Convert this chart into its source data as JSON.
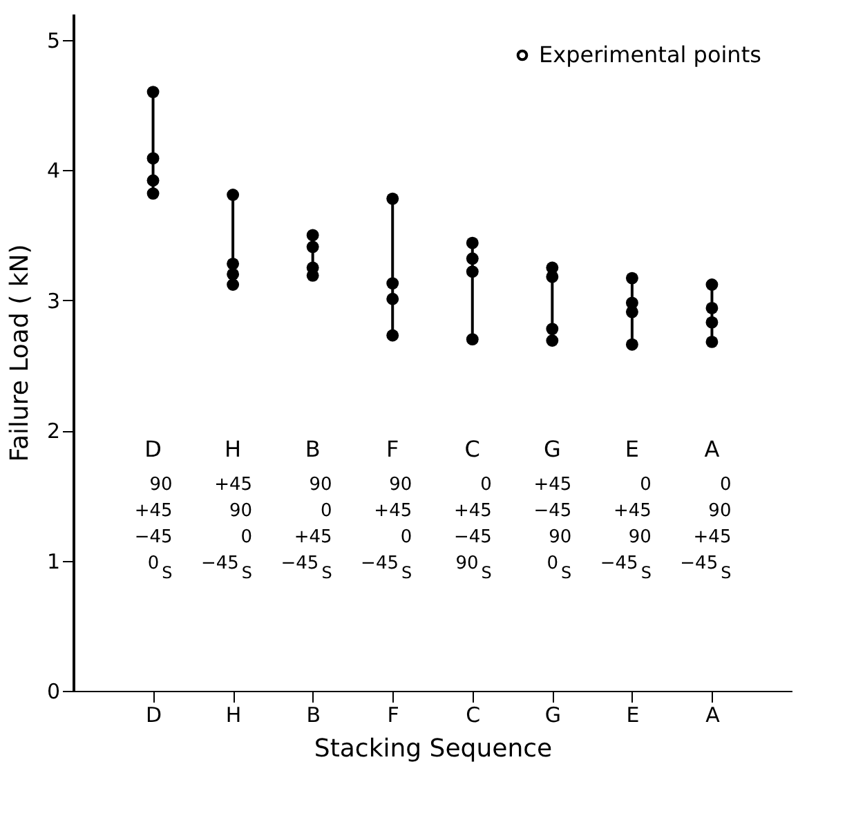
{
  "chart_data": {
    "type": "line",
    "xlabel": "Stacking Sequence",
    "ylabel": "Failure Load ( kN)",
    "categories": [
      "D",
      "H",
      "B",
      "F",
      "C",
      "G",
      "E",
      "A"
    ],
    "ylim": [
      0,
      5.2
    ],
    "yticks": [
      0,
      1,
      2,
      3,
      4,
      5
    ],
    "legend": "top right",
    "marker": "circle",
    "grid": false,
    "series": [
      {
        "name": "Experimental points",
        "color": "#000000",
        "x": [
          "D",
          "D",
          "D",
          "D"
        ],
        "values": [
          4.6,
          4.09,
          3.92,
          3.82
        ]
      },
      {
        "color": "#000000",
        "x": [
          "H",
          "H",
          "H",
          "H"
        ],
        "values": [
          3.81,
          3.28,
          3.2,
          3.12
        ]
      },
      {
        "color": "#000000",
        "x": [
          "B",
          "B",
          "B",
          "B"
        ],
        "values": [
          3.5,
          3.41,
          3.25,
          3.19
        ]
      },
      {
        "color": "#000000",
        "x": [
          "F",
          "F",
          "F",
          "F"
        ],
        "values": [
          3.78,
          3.13,
          3.01,
          2.73
        ]
      },
      {
        "color": "#000000",
        "x": [
          "C",
          "C",
          "C",
          "C"
        ],
        "values": [
          3.44,
          3.32,
          3.22,
          2.7
        ]
      },
      {
        "color": "#000000",
        "x": [
          "G",
          "G",
          "G",
          "G"
        ],
        "values": [
          3.25,
          3.18,
          2.78,
          2.69
        ]
      },
      {
        "color": "#000000",
        "x": [
          "E",
          "E",
          "E",
          "E"
        ],
        "values": [
          3.17,
          2.98,
          2.91,
          2.66
        ]
      },
      {
        "color": "#000000",
        "x": [
          "A",
          "A",
          "A",
          "A"
        ],
        "values": [
          3.12,
          2.94,
          2.83,
          2.68
        ]
      }
    ],
    "annotations": [
      "90\n+45\n−45\n0$_{S}$",
      "+45\n90\n0\n−45$_{S}$",
      "90\n0\n+45\n−45$_{S}$",
      "90\n+45\n0\n−45$_{S}$",
      "0\n+45\n−45\n90$_{S}$",
      "+45\n−45\n90\n0$_{S}$",
      "0\n+45\n90\n−45$_{S}$",
      "0\n90\n+45\n−45$_{S}$"
    ]
  }
}
